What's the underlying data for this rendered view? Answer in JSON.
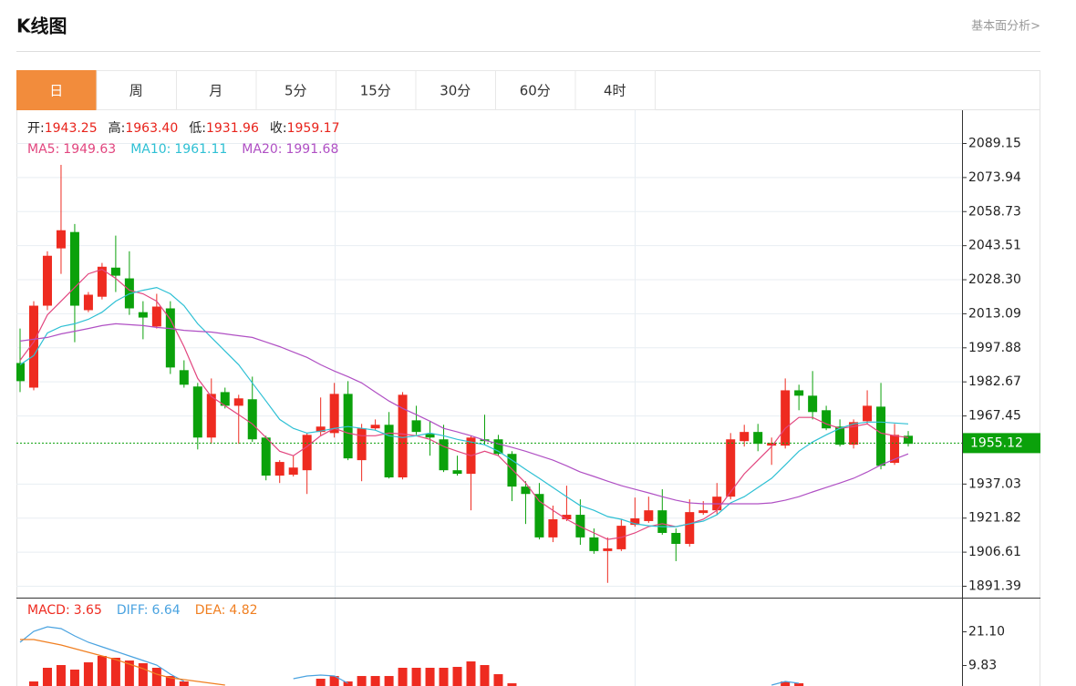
{
  "header": {
    "title": "K线图",
    "link": "基本面分析>"
  },
  "tabs": [
    "日",
    "周",
    "月",
    "5分",
    "15分",
    "30分",
    "60分",
    "4时"
  ],
  "active_tab": 0,
  "chart_data": [
    {
      "type": "candlestick",
      "info": [
        {
          "label": "开:",
          "value": "1943.25"
        },
        {
          "label": "高:",
          "value": "1963.40"
        },
        {
          "label": "低:",
          "value": "1931.96"
        },
        {
          "label": "收:",
          "value": "1959.17"
        }
      ],
      "up_color": "#ee2b20",
      "down_color": "#0ba10b",
      "open": [
        1990.9,
        1979.9,
        2016.5,
        2042.1,
        2049.4,
        2014.5,
        2020.5,
        2033.5,
        2028.7,
        2013.6,
        2007.2,
        2015.3,
        1987.7,
        1980.4,
        1957.6,
        1977.9,
        1971.8,
        1974.7,
        1957.6,
        1940.6,
        1941.0,
        1943.0,
        1960.1,
        1959.6,
        1977.1,
        1947.5,
        1961.7,
        1963.3,
        1939.8,
        1965.3,
        1959.2,
        1956.8,
        1943.0,
        1941.4,
        1956.8,
        1956.8,
        1950.3,
        1935.7,
        1932.4,
        1913.0,
        1921.1,
        1923.1,
        1913.0,
        1906.9,
        1907.7,
        1918.6,
        1920.3,
        1925.1,
        1915.0,
        1910.1,
        1923.9,
        1925.1,
        1931.2,
        1956.0,
        1960.1,
        1954.0,
        1954.0,
        1978.7,
        1976.3,
        1969.8,
        1962.5,
        1954.4,
        1964.9,
        1971.4,
        1946.3,
        1958.4
      ],
      "high": [
        2006.3,
        2018.5,
        2040.8,
        2079.4,
        2053.0,
        2022.6,
        2035.6,
        2047.8,
        2040.8,
        2018.5,
        2021.8,
        2018.5,
        1992.1,
        1982.0,
        1984.0,
        1979.9,
        1976.7,
        1984.8,
        1958.4,
        1947.5,
        1949.5,
        1959.6,
        1975.5,
        1982.0,
        1982.8,
        1963.7,
        1965.7,
        1969.0,
        1977.9,
        1971.8,
        1964.9,
        1963.3,
        1949.5,
        1958.4,
        1967.8,
        1958.8,
        1951.5,
        1938.1,
        1937.3,
        1927.2,
        1936.1,
        1930.0,
        1917.0,
        1913.0,
        1921.1,
        1930.8,
        1931.2,
        1934.5,
        1917.0,
        1930.0,
        1929.2,
        1937.3,
        1959.6,
        1963.3,
        1963.7,
        1957.6,
        1984.0,
        1981.2,
        1987.3,
        1971.8,
        1965.7,
        1965.7,
        1978.7,
        1982.0,
        1963.7,
        1960.5
      ],
      "low": [
        1977.9,
        1978.7,
        2014.5,
        2030.7,
        2000.2,
        2013.6,
        2019.3,
        2022.6,
        2012.4,
        2001.5,
        2006.3,
        1986.0,
        1979.9,
        1952.3,
        1954.8,
        1970.6,
        1954.8,
        1955.6,
        1938.5,
        1937.3,
        1940.2,
        1932.4,
        1958.4,
        1957.6,
        1947.5,
        1938.1,
        1960.9,
        1939.3,
        1938.9,
        1958.8,
        1949.5,
        1942.2,
        1940.6,
        1925.1,
        1954.4,
        1949.5,
        1929.2,
        1919.0,
        1912.1,
        1910.9,
        1920.3,
        1909.7,
        1905.7,
        1892.7,
        1906.9,
        1917.8,
        1919.5,
        1914.2,
        1902.4,
        1908.9,
        1923.1,
        1923.1,
        1930.0,
        1953.6,
        1951.5,
        1945.4,
        1952.7,
        1969.8,
        1965.7,
        1960.9,
        1953.6,
        1952.7,
        1963.7,
        1943.4,
        1945.4,
        1953.6
      ],
      "close": [
        1982.8,
        2016.5,
        2038.8,
        2050.2,
        2016.5,
        2021.4,
        2033.9,
        2029.9,
        2015.3,
        2011.2,
        2016.1,
        1988.9,
        1981.2,
        1957.6,
        1977.1,
        1971.8,
        1975.1,
        1956.8,
        1940.6,
        1946.7,
        1944.2,
        1958.8,
        1962.5,
        1977.1,
        1948.3,
        1961.7,
        1963.3,
        1939.8,
        1976.7,
        1960.1,
        1957.6,
        1943.0,
        1941.4,
        1957.6,
        1956.0,
        1950.3,
        1935.7,
        1932.4,
        1913.0,
        1921.1,
        1923.1,
        1913.0,
        1906.9,
        1908.1,
        1918.2,
        1921.5,
        1925.1,
        1915.0,
        1910.1,
        1924.3,
        1925.1,
        1931.2,
        1956.8,
        1960.1,
        1954.8,
        1955.2,
        1978.7,
        1976.3,
        1969.0,
        1961.7,
        1954.4,
        1964.5,
        1971.8,
        1945.0,
        1958.8,
        1954.8
      ],
      "series": [
        {
          "name": "MA5:",
          "current": "1949.63",
          "color": "#e2467f",
          "values": [
            1992.1,
            2000.3,
            2012.4,
            2018.5,
            2024.6,
            2030.7,
            2032.7,
            2028.7,
            2023.4,
            2021.8,
            2018.5,
            2010.4,
            1998.2,
            1984.0,
            1975.9,
            1971.8,
            1967.8,
            1963.7,
            1957.6,
            1951.5,
            1949.5,
            1953.6,
            1958.4,
            1961.7,
            1959.6,
            1958.4,
            1958.4,
            1959.6,
            1959.2,
            1958.4,
            1956.8,
            1953.6,
            1951.5,
            1949.5,
            1951.5,
            1949.5,
            1943.4,
            1937.3,
            1929.2,
            1925.1,
            1921.1,
            1917.8,
            1915.0,
            1912.1,
            1913.0,
            1915.0,
            1917.8,
            1919.1,
            1917.8,
            1919.1,
            1921.1,
            1925.1,
            1933.3,
            1941.4,
            1947.5,
            1953.6,
            1961.7,
            1966.6,
            1966.6,
            1963.7,
            1961.7,
            1962.5,
            1963.7,
            1959.6,
            1958.4,
            1957.6
          ]
        },
        {
          "name": "MA10:",
          "current": "1961.11",
          "color": "#2ec0d4",
          "values": [
            1990.1,
            1994.2,
            2004.3,
            2007.2,
            2008.4,
            2010.4,
            2013.6,
            2018.5,
            2021.8,
            2023.4,
            2024.6,
            2021.8,
            2016.5,
            2008.4,
            2002.3,
            1996.2,
            1990.1,
            1982.0,
            1973.9,
            1965.7,
            1961.7,
            1959.6,
            1960.5,
            1961.7,
            1962.5,
            1961.7,
            1960.9,
            1958.4,
            1957.6,
            1958.4,
            1959.6,
            1958.4,
            1956.8,
            1955.6,
            1954.4,
            1951.5,
            1947.5,
            1943.4,
            1939.4,
            1935.3,
            1931.2,
            1927.2,
            1925.1,
            1922.3,
            1921.1,
            1919.1,
            1918.2,
            1917.8,
            1917.8,
            1919.1,
            1920.3,
            1923.1,
            1928.4,
            1931.2,
            1935.3,
            1939.4,
            1945.4,
            1951.5,
            1955.6,
            1958.8,
            1961.7,
            1963.7,
            1964.5,
            1964.5,
            1964.1,
            1963.7
          ]
        },
        {
          "name": "MA20:",
          "current": "1991.68",
          "color": "#b050c4",
          "values": [
            2000.7,
            2001.5,
            2002.3,
            2003.9,
            2005.1,
            2006.3,
            2007.6,
            2008.4,
            2008.0,
            2007.6,
            2006.8,
            2006.3,
            2005.5,
            2005.1,
            2004.7,
            2003.9,
            2003.1,
            2002.3,
            2000.3,
            1998.2,
            1995.8,
            1993.4,
            1990.1,
            1987.3,
            1984.8,
            1982.0,
            1977.9,
            1973.9,
            1970.6,
            1967.8,
            1964.9,
            1961.7,
            1960.1,
            1958.4,
            1956.4,
            1954.8,
            1953.2,
            1951.5,
            1949.5,
            1947.5,
            1945.0,
            1942.2,
            1940.2,
            1938.1,
            1936.1,
            1934.5,
            1932.9,
            1931.2,
            1929.6,
            1928.4,
            1928.0,
            1928.0,
            1928.0,
            1928.0,
            1928.0,
            1928.4,
            1929.6,
            1931.2,
            1933.3,
            1935.3,
            1937.3,
            1939.4,
            1942.2,
            1945.4,
            1947.9,
            1950.3
          ]
        }
      ],
      "last_price": 1955.12,
      "ylim": [
        1886.1,
        2103.8
      ],
      "yticks": [
        2089.15,
        2073.94,
        2058.73,
        2043.51,
        {
          "value": 2028.3,
          "label": "2028.30"
        },
        2013.09,
        1997.88,
        1982.67,
        1967.45,
        1937.03,
        1921.82,
        1906.61,
        1891.39
      ],
      "grid": true
    },
    {
      "type": "macd",
      "ylim": [
        2.83,
        32.07
      ],
      "yticks": [
        {
          "value": 21.1,
          "label": "21.10"
        },
        9.83
      ],
      "series": [
        {
          "name": "MACD:",
          "current": "3.65",
          "color": "#ee2b20",
          "style": "bar",
          "values": [
            null,
            4.35,
            8.92,
            9.83,
            8.31,
            10.74,
            12.88,
            12.27,
            11.35,
            10.44,
            8.92,
            6.17,
            4.35,
            null,
            null,
            null,
            null,
            null,
            null,
            null,
            null,
            null,
            5.26,
            6.17,
            4.35,
            6.17,
            6.17,
            6.17,
            8.92,
            8.92,
            8.92,
            8.92,
            9.22,
            11.05,
            9.83,
            6.78,
            3.74,
            null,
            null,
            null,
            null,
            null,
            null,
            null,
            null,
            null,
            null,
            null,
            null,
            null,
            null,
            null,
            null,
            null,
            null,
            null,
            4.35,
            3.74,
            null,
            null,
            null,
            null,
            null,
            null,
            null,
            null
          ]
        },
        {
          "name": "DIFF:",
          "current": "6.64",
          "color": "#4aa3e0",
          "style": "line",
          "values": [
            17.45,
            21.1,
            22.62,
            22.01,
            19.58,
            17.45,
            15.92,
            14.4,
            12.88,
            11.35,
            9.83,
            6.78,
            4.35,
            null,
            null,
            null,
            null,
            null,
            null,
            null,
            5.26,
            6.17,
            6.48,
            6.17,
            3.74,
            null,
            null,
            null,
            null,
            null,
            null,
            null,
            null,
            null,
            null,
            null,
            null,
            null,
            null,
            null,
            null,
            null,
            null,
            null,
            null,
            null,
            null,
            null,
            null,
            null,
            null,
            null,
            null,
            null,
            null,
            3.13,
            4.35,
            3.74,
            null,
            null,
            null,
            null,
            null,
            null,
            null,
            null
          ]
        },
        {
          "name": "DEA:",
          "current": "4.82",
          "color": "#f07f21",
          "style": "line",
          "values": [
            18.36,
            18.36,
            17.45,
            16.53,
            15.31,
            14.09,
            12.88,
            11.66,
            10.13,
            8.61,
            6.78,
            5.57,
            4.96,
            4.35,
            3.74,
            3.13,
            null,
            null,
            null,
            null,
            null,
            null,
            null,
            null,
            null,
            null,
            null,
            null,
            null,
            null,
            null,
            null,
            null,
            null,
            null,
            null,
            null,
            null,
            null,
            null,
            null,
            null,
            null,
            null,
            null,
            null,
            null,
            null,
            null,
            null,
            null,
            null,
            null,
            null,
            null,
            null,
            null,
            null,
            null,
            null,
            null,
            null,
            null,
            null,
            null,
            null
          ]
        }
      ]
    }
  ]
}
